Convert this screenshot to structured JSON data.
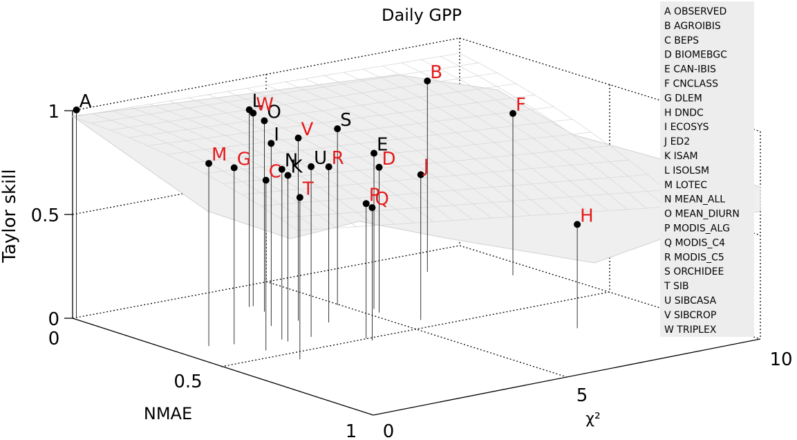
{
  "chart_data": {
    "type": "scatter3d",
    "title": "Daily GPP",
    "xlabel": "χ²",
    "ylabel": "NMAE",
    "zlabel": "Taylor skill",
    "xlim": [
      0,
      10
    ],
    "ylim": [
      0,
      1
    ],
    "zlim": [
      0,
      1
    ],
    "x_ticks": [
      "0",
      "5",
      "10"
    ],
    "y_ticks": [
      "0",
      "0.5",
      "1"
    ],
    "z_ticks": [
      "0",
      "0.5",
      "1"
    ],
    "grid": true,
    "surface": "Taylor skill as a function of χ² and NMAE",
    "colors": {
      "observed_labels": "#000000",
      "model_labels": "#e41a1c",
      "surface": "#e6e6e6"
    },
    "points": [
      {
        "label": "A",
        "x": 0.1,
        "y": 0.0,
        "z": 1.0,
        "name": "OBSERVED",
        "label_color": "black"
      },
      {
        "label": "B",
        "x": 8.0,
        "y": 0.15,
        "z": 0.92,
        "name": "AGROIBIS",
        "label_color": "red"
      },
      {
        "label": "C",
        "x": 1.5,
        "y": 0.45,
        "z": 0.82,
        "name": "BEPS",
        "label_color": "red"
      },
      {
        "label": "D",
        "x": 5.2,
        "y": 0.35,
        "z": 0.7,
        "name": "BIOMEBGC",
        "label_color": "red"
      },
      {
        "label": "E",
        "x": 5.3,
        "y": 0.32,
        "z": 0.75,
        "name": "CAN-IBIS",
        "label_color": "black"
      },
      {
        "label": "F",
        "x": 9.2,
        "y": 0.28,
        "z": 0.78,
        "name": "CNCLASS",
        "label_color": "red"
      },
      {
        "label": "G",
        "x": 1.3,
        "y": 0.37,
        "z": 0.85,
        "name": "DLEM",
        "label_color": "red"
      },
      {
        "label": "H",
        "x": 7.6,
        "y": 0.7,
        "z": 0.5,
        "name": "DNDC",
        "label_color": "red"
      },
      {
        "label": "I",
        "x": 2.8,
        "y": 0.3,
        "z": 0.88,
        "name": "ECOSYS",
        "label_color": "black"
      },
      {
        "label": "J",
        "x": 5.5,
        "y": 0.45,
        "z": 0.7,
        "name": "ED2",
        "label_color": "red"
      },
      {
        "label": "K",
        "x": 2.3,
        "y": 0.42,
        "z": 0.8,
        "name": "ISAM",
        "label_color": "black"
      },
      {
        "label": "L",
        "x": 3.4,
        "y": 0.15,
        "z": 0.95,
        "name": "ISOLSM",
        "label_color": "black"
      },
      {
        "label": "M",
        "x": 0.8,
        "y": 0.35,
        "z": 0.88,
        "name": "LOTEC",
        "label_color": "red"
      },
      {
        "label": "N",
        "x": 2.3,
        "y": 0.4,
        "z": 0.82,
        "name": "MEAN_ALL",
        "label_color": "black"
      },
      {
        "label": "O",
        "x": 3.4,
        "y": 0.2,
        "z": 0.92,
        "name": "MEAN_DIURN",
        "label_color": "black"
      },
      {
        "label": "P",
        "x": 3.7,
        "y": 0.5,
        "z": 0.65,
        "name": "MODIS_ALG",
        "label_color": "red"
      },
      {
        "label": "Q",
        "x": 3.7,
        "y": 0.52,
        "z": 0.64,
        "name": "MODIS_C4",
        "label_color": "red"
      },
      {
        "label": "R",
        "x": 3.9,
        "y": 0.35,
        "z": 0.75,
        "name": "MODIS_C5",
        "label_color": "red"
      },
      {
        "label": "S",
        "x": 4.9,
        "y": 0.25,
        "z": 0.85,
        "name": "ORCHIDEE",
        "label_color": "black"
      },
      {
        "label": "T",
        "x": 1.6,
        "y": 0.55,
        "z": 0.78,
        "name": "SIB",
        "label_color": "red"
      },
      {
        "label": "U",
        "x": 2.9,
        "y": 0.42,
        "z": 0.82,
        "name": "SIBCASA",
        "label_color": "black"
      },
      {
        "label": "V",
        "x": 3.5,
        "y": 0.3,
        "z": 0.88,
        "name": "SIBCROP",
        "label_color": "red"
      },
      {
        "label": "W",
        "x": 3.5,
        "y": 0.15,
        "z": 0.93,
        "name": "TRIPLEX",
        "label_color": "red"
      }
    ],
    "legend": [
      "A OBSERVED",
      "B AGROIBIS",
      "C BEPS",
      "D BIOMEBGC",
      "E CAN-IBIS",
      "F CNCLASS",
      "G DLEM",
      "H DNDC",
      "I ECOSYS",
      "J ED2",
      "K ISAM",
      "L ISOLSM",
      "M LOTEC",
      "N MEAN_ALL",
      "O MEAN_DIURN",
      "P MODIS_ALG",
      "Q MODIS_C4",
      "R MODIS_C5",
      "S ORCHIDEE",
      "T SIB",
      "U SIBCASA",
      "V SIBCROP",
      "W TRIPLEX"
    ],
    "legend_position": "top-right"
  }
}
